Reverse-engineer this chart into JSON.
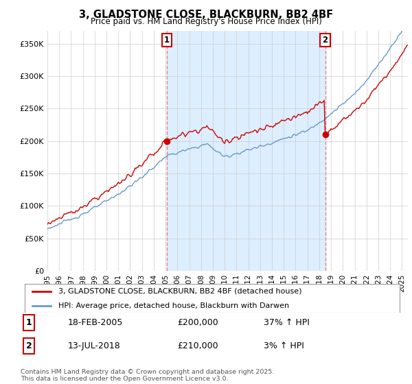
{
  "title": "3, GLADSTONE CLOSE, BLACKBURN, BB2 4BF",
  "subtitle": "Price paid vs. HM Land Registry's House Price Index (HPI)",
  "legend_line1": "3, GLADSTONE CLOSE, BLACKBURN, BB2 4BF (detached house)",
  "legend_line2": "HPI: Average price, detached house, Blackburn with Darwen",
  "annotation1_date": "18-FEB-2005",
  "annotation1_price": "£200,000",
  "annotation1_hpi": "37% ↑ HPI",
  "annotation2_date": "13-JUL-2018",
  "annotation2_price": "£210,000",
  "annotation2_hpi": "3% ↑ HPI",
  "footer": "Contains HM Land Registry data © Crown copyright and database right 2025.\nThis data is licensed under the Open Government Licence v3.0.",
  "red_color": "#cc0000",
  "blue_color": "#6699cc",
  "vline_color": "#dd8888",
  "shade_color": "#ddeeff",
  "ylim": [
    0,
    370000
  ],
  "yticks": [
    0,
    50000,
    100000,
    150000,
    200000,
    250000,
    300000,
    350000
  ],
  "background_color": "#ffffff",
  "grid_color": "#cccccc",
  "sale1_year": 2005.12,
  "sale2_year": 2018.54,
  "sale1_price": 200000,
  "sale2_price": 210000,
  "xstart": 1995,
  "xend": 2025.5
}
